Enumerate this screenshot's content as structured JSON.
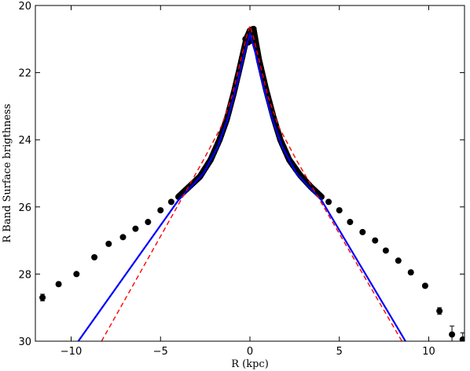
{
  "chart_data": {
    "type": "scatter",
    "title": "",
    "xlabel": "R (kpc)",
    "ylabel": "R Band Surface brigthness",
    "xlim": [
      -12,
      12
    ],
    "ylim": [
      30,
      20
    ],
    "y_inverted": true,
    "xticks": [
      -10,
      -5,
      0,
      5,
      10
    ],
    "yticks": [
      20,
      22,
      24,
      26,
      28,
      30
    ],
    "xtick_labels": [
      "−10",
      "−5",
      "0",
      "5",
      "10"
    ],
    "ytick_labels": [
      "20",
      "22",
      "24",
      "26",
      "28",
      "30"
    ],
    "grid": false,
    "colors": {
      "data": "#000000",
      "model_solid": "#0000ff",
      "model_dashed": "#ff0000"
    },
    "outer_points": [
      {
        "x": -11.6,
        "y": 28.7,
        "err": 0.1
      },
      {
        "x": -10.7,
        "y": 28.3,
        "err": 0.05
      },
      {
        "x": -9.7,
        "y": 28.0
      },
      {
        "x": -8.7,
        "y": 27.5
      },
      {
        "x": -7.9,
        "y": 27.1
      },
      {
        "x": -7.1,
        "y": 26.9
      },
      {
        "x": -6.4,
        "y": 26.65
      },
      {
        "x": -5.7,
        "y": 26.45
      },
      {
        "x": -5.0,
        "y": 26.1
      },
      {
        "x": -4.4,
        "y": 25.85
      },
      {
        "x": 4.4,
        "y": 25.85
      },
      {
        "x": 5.0,
        "y": 26.1
      },
      {
        "x": 5.6,
        "y": 26.45
      },
      {
        "x": 6.3,
        "y": 26.75
      },
      {
        "x": 7.0,
        "y": 27.0
      },
      {
        "x": 7.6,
        "y": 27.3
      },
      {
        "x": 8.3,
        "y": 27.6
      },
      {
        "x": 9.0,
        "y": 27.95
      },
      {
        "x": 9.8,
        "y": 28.35
      },
      {
        "x": 10.6,
        "y": 29.1,
        "err": 0.1
      },
      {
        "x": 11.3,
        "y": 29.8,
        "err": 0.25
      },
      {
        "x": 11.9,
        "y": 29.95,
        "err": 0.2
      }
    ],
    "dense_profile": [
      {
        "x": -4.0,
        "y": 25.7
      },
      {
        "x": -3.4,
        "y": 25.4
      },
      {
        "x": -2.8,
        "y": 25.1
      },
      {
        "x": -2.2,
        "y": 24.6
      },
      {
        "x": -1.7,
        "y": 24.0
      },
      {
        "x": -1.3,
        "y": 23.4
      },
      {
        "x": -0.9,
        "y": 22.6
      },
      {
        "x": -0.5,
        "y": 21.7
      },
      {
        "x": -0.2,
        "y": 21.0
      },
      {
        "x": 0.0,
        "y": 20.75
      },
      {
        "x": 0.2,
        "y": 20.7
      },
      {
        "x": 0.5,
        "y": 21.6
      },
      {
        "x": 0.9,
        "y": 22.5
      },
      {
        "x": 1.3,
        "y": 23.3
      },
      {
        "x": 1.7,
        "y": 24.0
      },
      {
        "x": 2.2,
        "y": 24.6
      },
      {
        "x": 2.8,
        "y": 25.05
      },
      {
        "x": 3.4,
        "y": 25.4
      },
      {
        "x": 4.0,
        "y": 25.7
      }
    ],
    "central_points": [
      {
        "x": -0.25,
        "y": 21.0
      },
      {
        "x": -0.1,
        "y": 21.1
      },
      {
        "x": 0.05,
        "y": 21.05
      },
      {
        "x": 0.2,
        "y": 20.7
      }
    ],
    "model_solid": [
      {
        "x": -9.6,
        "y": 30.0
      },
      {
        "x": -4.0,
        "y": 25.8
      },
      {
        "x": -2.6,
        "y": 25.0
      },
      {
        "x": -1.8,
        "y": 24.2
      },
      {
        "x": -1.2,
        "y": 23.3
      },
      {
        "x": -0.7,
        "y": 22.3
      },
      {
        "x": -0.3,
        "y": 21.4
      },
      {
        "x": 0.0,
        "y": 20.85
      },
      {
        "x": 0.3,
        "y": 21.4
      },
      {
        "x": 0.7,
        "y": 22.3
      },
      {
        "x": 1.2,
        "y": 23.3
      },
      {
        "x": 1.8,
        "y": 24.2
      },
      {
        "x": 2.6,
        "y": 25.0
      },
      {
        "x": 4.0,
        "y": 25.8
      },
      {
        "x": 8.7,
        "y": 30.0
      }
    ],
    "model_dashed": [
      {
        "x": -8.3,
        "y": 30.0
      },
      {
        "x": -2.6,
        "y": 24.6
      },
      {
        "x": -1.6,
        "y": 23.6
      },
      {
        "x": -1.0,
        "y": 22.7
      },
      {
        "x": -0.5,
        "y": 21.6
      },
      {
        "x": -0.2,
        "y": 20.95
      },
      {
        "x": 0.0,
        "y": 20.6
      },
      {
        "x": 0.2,
        "y": 20.95
      },
      {
        "x": 0.5,
        "y": 21.6
      },
      {
        "x": 1.0,
        "y": 22.7
      },
      {
        "x": 1.6,
        "y": 23.6
      },
      {
        "x": 2.6,
        "y": 24.6
      },
      {
        "x": 8.5,
        "y": 30.0
      }
    ]
  }
}
